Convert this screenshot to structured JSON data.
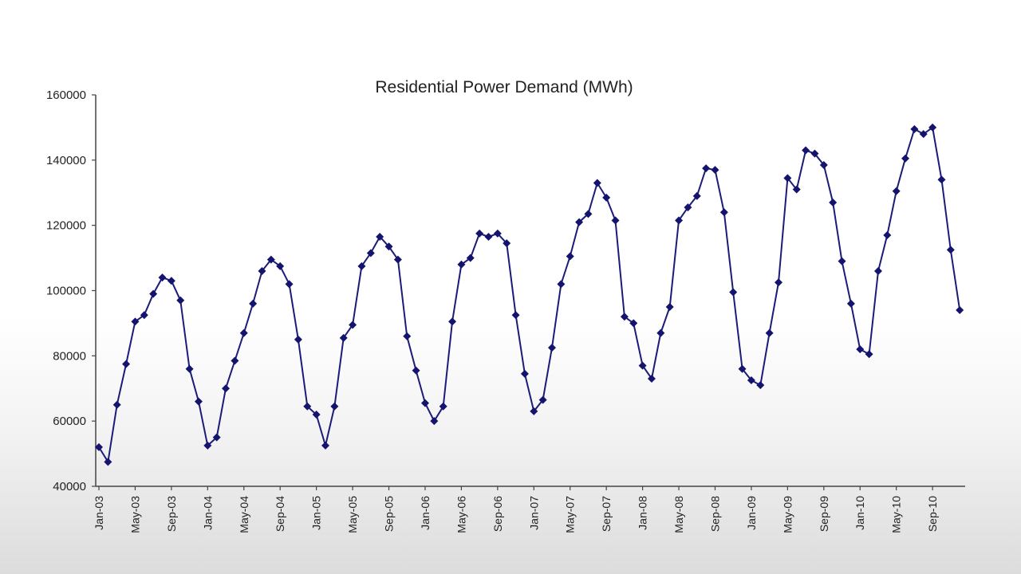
{
  "chart_data": {
    "type": "line",
    "title": "Residential Power Demand (MWh)",
    "xlabel": "",
    "ylabel": "",
    "ylim": [
      40000,
      160000
    ],
    "yticks": [
      40000,
      60000,
      80000,
      100000,
      120000,
      140000,
      160000
    ],
    "ytick_labels": [
      "40000",
      "60000",
      "80000",
      "100000",
      "120000",
      "140000",
      "160000"
    ],
    "xtick_labels": [
      "Jan-03",
      "May-03",
      "Sep-03",
      "Jan-04",
      "May-04",
      "Sep-04",
      "Jan-05",
      "May-05",
      "Sep-05",
      "Jan-06",
      "May-06",
      "Sep-06",
      "Jan-07",
      "May-07",
      "Sep-07",
      "Jan-08",
      "May-08",
      "Sep-08",
      "Jan-09",
      "May-09",
      "Sep-09",
      "Jan-10",
      "May-10",
      "Sep-10"
    ],
    "grid": false,
    "legend": "none",
    "colors": {
      "line": "#1b1b7a",
      "marker": "#14146e"
    },
    "series": [
      {
        "marker": "diamond",
        "x": [
          "Jan-03",
          "Feb-03",
          "Mar-03",
          "Apr-03",
          "May-03",
          "Jun-03",
          "Jul-03",
          "Aug-03",
          "Sep-03",
          "Oct-03",
          "Nov-03",
          "Dec-03",
          "Jan-04",
          "Feb-04",
          "Mar-04",
          "Apr-04",
          "May-04",
          "Jun-04",
          "Jul-04",
          "Aug-04",
          "Sep-04",
          "Oct-04",
          "Nov-04",
          "Dec-04",
          "Jan-05",
          "Feb-05",
          "Mar-05",
          "Apr-05",
          "May-05",
          "Jun-05",
          "Jul-05",
          "Aug-05",
          "Sep-05",
          "Oct-05",
          "Nov-05",
          "Dec-05",
          "Jan-06",
          "Feb-06",
          "Mar-06",
          "Apr-06",
          "May-06",
          "Jun-06",
          "Jul-06",
          "Aug-06",
          "Sep-06",
          "Oct-06",
          "Nov-06",
          "Dec-06",
          "Jan-07",
          "Feb-07",
          "Mar-07",
          "Apr-07",
          "May-07",
          "Jun-07",
          "Jul-07",
          "Aug-07",
          "Sep-07",
          "Oct-07",
          "Nov-07",
          "Dec-07",
          "Jan-08",
          "Feb-08",
          "Mar-08",
          "Apr-08",
          "May-08",
          "Jun-08",
          "Jul-08",
          "Aug-08",
          "Sep-08",
          "Oct-08",
          "Nov-08",
          "Dec-08",
          "Jan-09",
          "Feb-09",
          "Mar-09",
          "Apr-09",
          "May-09",
          "Jun-09",
          "Jul-09",
          "Aug-09",
          "Sep-09",
          "Oct-09",
          "Nov-09",
          "Dec-09",
          "Jan-10",
          "Feb-10",
          "Mar-10",
          "Apr-10",
          "May-10",
          "Jun-10",
          "Jul-10",
          "Aug-10",
          "Sep-10",
          "Oct-10",
          "Nov-10",
          "Dec-10"
        ],
        "values": [
          52000,
          47500,
          65000,
          77500,
          90500,
          92500,
          99000,
          104000,
          103000,
          97000,
          76000,
          66000,
          52500,
          55000,
          70000,
          78500,
          87000,
          96000,
          106000,
          109500,
          107500,
          102000,
          85000,
          64500,
          62000,
          52500,
          64500,
          85500,
          89500,
          107500,
          111500,
          116500,
          113500,
          109500,
          86000,
          75500,
          65500,
          60000,
          64500,
          90500,
          108000,
          110000,
          117500,
          116500,
          117500,
          114500,
          92500,
          74500,
          63000,
          66500,
          82500,
          102000,
          110500,
          121000,
          123500,
          133000,
          128500,
          121500,
          92000,
          90000,
          77000,
          73000,
          87000,
          95000,
          121500,
          125500,
          129000,
          137500,
          137000,
          124000,
          99500,
          76000,
          72500,
          71000,
          87000,
          102500,
          134500,
          131000,
          143000,
          142000,
          138500,
          127000,
          109000,
          96000,
          82000,
          80500,
          106000,
          117000,
          130500,
          140500,
          149500,
          148000,
          150000,
          134000,
          112500,
          94000
        ]
      }
    ]
  }
}
